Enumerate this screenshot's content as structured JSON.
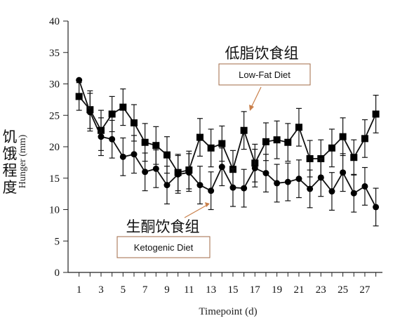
{
  "chart_data": {
    "type": "line",
    "xlabel": "Timepoint (d)",
    "ylabel_en": "Hunger (mm)",
    "ylabel_cn": "饥饿程度",
    "ylim": [
      0,
      40
    ],
    "xlim": [
      0,
      28.6
    ],
    "yticks": [
      0,
      5,
      10,
      15,
      20,
      25,
      30,
      35,
      40
    ],
    "xticks": [
      1,
      3,
      5,
      7,
      9,
      11,
      13,
      15,
      17,
      19,
      21,
      23,
      25,
      27
    ],
    "grid": false,
    "x": [
      1,
      2,
      3,
      4,
      5,
      6,
      7,
      8,
      9,
      10,
      11,
      12,
      13,
      14,
      15,
      16,
      17,
      18,
      19,
      20,
      21,
      22,
      23,
      24,
      25,
      26,
      27,
      28
    ],
    "series": [
      {
        "name": "Low-Fat Diet",
        "name_cn": "低脂饮食组",
        "marker": "square",
        "values": [
          28.0,
          25.9,
          22.6,
          25.2,
          26.3,
          23.8,
          20.7,
          20.2,
          18.7,
          15.9,
          16.3,
          21.5,
          19.8,
          20.5,
          16.4,
          22.6,
          17.4,
          20.8,
          21.1,
          20.7,
          23.1,
          18.1,
          18.1,
          19.8,
          21.6,
          18.3,
          21.3,
          25.2
        ],
        "errors": [
          2.2,
          3.0,
          3.2,
          2.8,
          2.9,
          2.9,
          3.0,
          3.0,
          2.9,
          2.9,
          3.0,
          3.0,
          3.0,
          2.8,
          3.0,
          3.0,
          3.0,
          3.0,
          3.0,
          3.0,
          3.0,
          2.9,
          3.0,
          3.0,
          3.0,
          2.8,
          3.0,
          3.0
        ]
      },
      {
        "name": "Ketogenic Diet",
        "name_cn": "生酮饮食组",
        "marker": "circle",
        "values": [
          30.6,
          25.5,
          21.6,
          21.2,
          18.4,
          18.8,
          16.0,
          16.5,
          13.9,
          15.6,
          15.9,
          13.9,
          13.0,
          16.8,
          13.5,
          13.4,
          16.6,
          15.8,
          14.2,
          14.4,
          14.9,
          13.3,
          15.1,
          12.9,
          15.9,
          12.6,
          13.7,
          10.4
        ]
      }
    ],
    "errors_ketogenic": [
      0,
      3.0,
      3.0,
      3.0,
      3.0,
      3.0,
      3.0,
      3.0,
      3.0,
      3.0,
      3.0,
      3.0,
      3.0,
      3.0,
      3.0,
      3.0,
      3.0,
      3.0,
      3.0,
      3.0,
      3.0,
      3.0,
      3.0,
      3.0,
      3.0,
      3.0,
      3.0,
      3.0
    ],
    "annotations": [
      {
        "text": "Low-Fat Diet",
        "series": 0
      },
      {
        "text": "Ketogenic Diet",
        "series": 1
      }
    ]
  }
}
